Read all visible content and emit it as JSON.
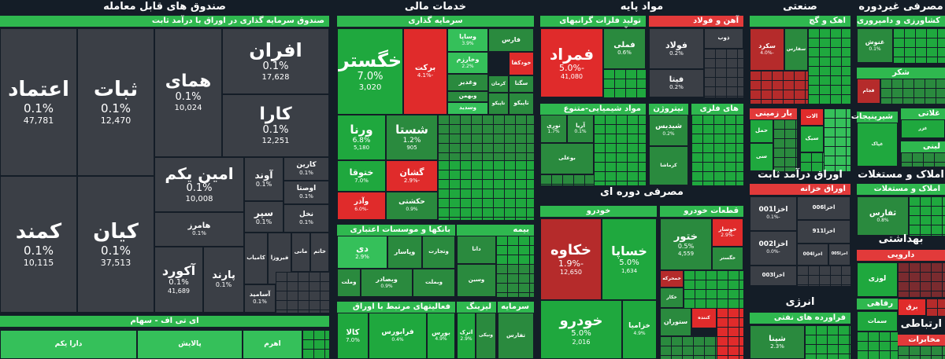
{
  "colors": {
    "up": "#1fa83e",
    "neutral": "#3b3f46",
    "down": "#e02b2b"
  },
  "sectors": {
    "funds": {
      "title": "صندوق های قابل معامله",
      "sub": "صندوق سرمایه گذاری در اوراق با درآمد ثابت",
      "etf": "ای تی اف - سهام",
      "tiles": {
        "etemad": {
          "name": "اعتماد",
          "pct": "0.1%",
          "val": "47,781"
        },
        "sabat": {
          "name": "ثبات",
          "pct": "0.1%",
          "val": "12,470"
        },
        "homay": {
          "name": "همای",
          "pct": "0.1%",
          "val": "10,024"
        },
        "afran": {
          "name": "افران",
          "pct": "0.1%",
          "val": "17,628"
        },
        "kara": {
          "name": "کارا",
          "pct": "0.1%",
          "val": "12,251"
        },
        "amin": {
          "name": "امین یکم",
          "pct": "0.1%",
          "val": "10,008"
        },
        "kamand": {
          "name": "کمند",
          "pct": "0.1%",
          "val": "10,115"
        },
        "kian": {
          "name": "کیان",
          "pct": "0.1%",
          "val": "37,513"
        },
        "akord": {
          "name": "آکورد",
          "pct": "0.1%",
          "val": "41,689"
        },
        "parand": {
          "name": "پارند",
          "pct": "0.1%"
        },
        "avand": {
          "name": "آوند",
          "pct": "0.1%"
        },
        "karin": {
          "name": "کارین",
          "pct": "0.1%"
        },
        "osta": {
          "name": "اوصتا",
          "pct": "0.1%"
        },
        "ser": {
          "name": "سپر",
          "pct": "0.1%"
        },
        "nakhl": {
          "name": "نخل",
          "pct": "0.1%"
        },
        "hamorz": {
          "name": "هامرز",
          "pct": "0.1%"
        },
        "kamyab": {
          "name": "کامیاب"
        },
        "firoza": {
          "name": "فیروزا"
        },
        "mani": {
          "name": "مانی"
        },
        "khatam": {
          "name": "خاتم"
        },
        "asamid": {
          "name": "آساميد",
          "pct": "0.1%"
        },
        "dara": {
          "name": "دارا یکم"
        },
        "palayesh": {
          "name": "پالایش"
        },
        "ahrom": {
          "name": "اهرم"
        }
      }
    },
    "financial": {
      "title": "خدمات مالی",
      "sub1": "سرمایه گذاری",
      "sub2": "بانکها و موسسات اعتباری",
      "sub3": "بیمه",
      "sub4": "فعالیتهای مرتبط با اوراق بهادار",
      "sub5": "لیزینگ",
      "sub6": "سرمایه",
      "tiles": {
        "khagostar": {
          "name": "خگستر",
          "pct": "7.0%",
          "val": "3,020"
        },
        "barkat": {
          "name": "برکت",
          "pct": "-4.1%"
        },
        "vasapa": {
          "name": "وساپا",
          "pct": "3.9%"
        },
        "fars": {
          "name": "فارس"
        },
        "vkharazm": {
          "name": "وخارزم",
          "pct": "2.2%"
        },
        "khodkafa": {
          "name": "خودکفا"
        },
        "vghadir": {
          "name": "وغدیر"
        },
        "kerman": {
          "name": "کرمان"
        },
        "seghta": {
          "name": "سگتا"
        },
        "bahman": {
          "name": "وبهمن"
        },
        "vsadid": {
          "name": "وسدید"
        },
        "tapiko": {
          "name": "تاپیکو"
        },
        "tapiko2": {
          "name": "تاپیکو"
        },
        "varna": {
          "name": "ورنا",
          "pct": "6.8%",
          "val": "5,180"
        },
        "shasta": {
          "name": "شستا",
          "pct": "1.2%",
          "val": "905"
        },
        "khatoga": {
          "name": "ختوقا",
          "pct": "7.0%"
        },
        "gashan": {
          "name": "گشان",
          "pct": "-2.9%"
        },
        "vader": {
          "name": "وآذر",
          "pct": "-6.0%"
        },
        "hakashti": {
          "name": "حکشتی",
          "pct": "0.9%"
        },
        "di": {
          "name": "دی",
          "pct": "2.9%"
        },
        "vpasar": {
          "name": "وپاسار"
        },
        "vtejarat": {
          "name": "وتجارت"
        },
        "vmellat": {
          "name": "وملت"
        },
        "vbsadr": {
          "name": "وبصادر",
          "pct": "0.9%"
        },
        "vbmellat": {
          "name": "وبملت"
        },
        "dana": {
          "name": "دانا"
        },
        "vsin": {
          "name": "وسین"
        },
        "kala": {
          "name": "کالا",
          "pct": "7.0%"
        },
        "farabors": {
          "name": "فرابورس",
          "pct": "0.4%"
        },
        "bors": {
          "name": "بورس",
          "pct": "4.9%"
        },
        "atrak": {
          "name": "اترک",
          "pct": "2.9%"
        },
        "vbankesh": {
          "name": "ونیکی"
        },
        "tafars": {
          "name": "تفارس"
        }
      }
    },
    "basic": {
      "title": "مواد پایه",
      "sub1": "تولید فلزات گرانبهای غیرآهن",
      "sub2": "آهن و فولاد",
      "sub3": "مواد شیمیایی-متنوع",
      "sub4": "نیتروژن",
      "sub5": "های فلزی",
      "tiles": {
        "famrad": {
          "name": "فمراد",
          "pct": "-5.0%",
          "val": "41,080"
        },
        "fameli": {
          "name": "فملی",
          "pct": "0.6%"
        },
        "foolad": {
          "name": "فولاد",
          "pct": "0.2%"
        },
        "fita": {
          "name": "فیتا",
          "pct": "0.2%"
        },
        "zob": {
          "name": "ذوب"
        },
        "noori": {
          "name": "نوری",
          "pct": "1.7%"
        },
        "arya": {
          "name": "آریا",
          "pct": "0.1%"
        },
        "boali": {
          "name": "بوعلی"
        },
        "shidis": {
          "name": "شیدیس",
          "pct": "0.2%"
        },
        "kermasha": {
          "name": "کرماشا"
        }
      }
    },
    "consumerCyc": {
      "title": "مصرفی دوره ای",
      "sub1": "خودرو",
      "sub2": "قطعات خودرو",
      "tiles": {
        "khakave": {
          "name": "خکاوه",
          "pct": "-1.9%",
          "val": "12,650"
        },
        "khasapa": {
          "name": "خساپا",
          "pct": "5.0%",
          "val": "1,634"
        },
        "khodro": {
          "name": "خودرو",
          "pct": "5.0%",
          "val": "2,016"
        },
        "khazamia": {
          "name": "خزامیا",
          "pct": "4.9%"
        },
        "khatoor": {
          "name": "ختور",
          "pct": "0.5%",
          "val": "4,559"
        },
        "khosar": {
          "name": "خوسار",
          "pct": "-2.9%"
        },
        "khmehr": {
          "name": "خمحرکه"
        },
        "khosaz": {
          "name": "خگستر"
        },
        "khchar": {
          "name": "خکار"
        },
        "satoran": {
          "name": "ستوران"
        },
        "konande": {
          "name": "کننده"
        }
      }
    },
    "industrial": {
      "title": "صنعتی",
      "sub1": "اهک و گچ",
      "sub2": "بار زمینی",
      "tiles": {
        "sakord": {
          "name": "سکرد",
          "pct": "-4.0%"
        },
        "stile": {
          "name": "سفارس"
        },
        "hamal": {
          "name": "حمل"
        },
        "lat": {
          "name": "الات"
        },
        "sika": {
          "name": "سیک"
        },
        "sonad": {
          "name": "سی"
        }
      }
    },
    "fixedIncome": {
      "title": "اوراق درآمد ثابت",
      "sub": "اوراق خزانه",
      "tiles": {
        "akhza001": {
          "name": "اخزا001",
          "pct": "-0.1%"
        },
        "akhza002": {
          "name": "اخزا002",
          "pct": "-0.0%"
        },
        "akhza006": {
          "name": "اخزا006"
        },
        "akhza911": {
          "name": "اخزا911"
        },
        "akhza004": {
          "name": "اخزا004"
        },
        "akhza003": {
          "name": "اخزا003"
        },
        "akhza005": {
          "name": "اخزا005"
        }
      }
    },
    "energy": {
      "title": "انرژی",
      "sub": "فراورده های نفتی",
      "tiles": {
        "shepna": {
          "name": "شپنا",
          "pct": "2.3%"
        }
      }
    },
    "consumerStaples": {
      "title": "مصرفی غیردوره ای",
      "sub1": "کشاورزی و دامپروری",
      "sub2": "شکر",
      "sub3": "غلاتی",
      "sub4": "شیرینیجات",
      "sub5": "لبنی",
      "tiles": {
        "ghonosh": {
          "name": "غنوش",
          "pct": "0.1%"
        },
        "ghdam": {
          "name": "قجام"
        },
        "ghopa": {
          "name": "غپاک"
        },
        "ghoza": {
          "name": "غزر"
        }
      }
    },
    "realEstate": {
      "title": "املاک و مستغلات",
      "sub": "املاک و مستغلات",
      "tiles": {
        "tfars": {
          "name": "ثفارس",
          "pct": "0.8%"
        }
      }
    },
    "health": {
      "title": "بهداشتی",
      "sub": "دارویی",
      "tiles": {
        "lozi": {
          "name": "لوزی"
        }
      }
    },
    "telecom": {
      "title": "ارتباطی",
      "sub1": "رفاهی",
      "sub2": "مخابرات",
      "tiles": {
        "barq": {
          "name": "برق"
        },
        "sematc": {
          "name": "سمات"
        }
      }
    }
  }
}
